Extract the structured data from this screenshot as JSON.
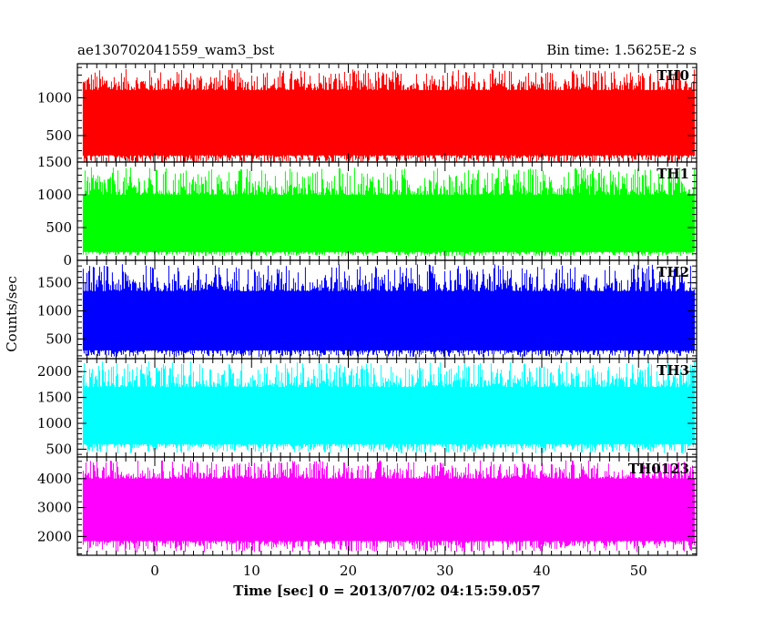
{
  "header": {
    "left_title": "ae130702041559_wam3_bst",
    "right_title": "Bin time: 1.5625E-2 s"
  },
  "chart_data": {
    "type": "line",
    "title": "ae130702041559_wam3_bst",
    "subtitle": "Bin time: 1.5625E-2 s",
    "xlabel": "Time [sec] 0 = 2013/07/02 04:15:59.057",
    "ylabel": "Counts/sec",
    "xlim": [
      -8,
      56
    ],
    "x_ticks": [
      0,
      10,
      20,
      30,
      40,
      50
    ],
    "x_data_range": [
      -7.4,
      55.8
    ],
    "panels": [
      {
        "name": "TH0",
        "color": "#ff0000",
        "ylim": [
          150,
          1450
        ],
        "y_ticks": [
          500,
          1000
        ],
        "band_low": 240,
        "band_high": 1100,
        "spike_min": 120,
        "spike_max": 1380
      },
      {
        "name": "TH1",
        "color": "#00ff00",
        "ylim": [
          0,
          1500
        ],
        "y_ticks": [
          0,
          500,
          1000,
          1500
        ],
        "band_low": 130,
        "band_high": 1000,
        "spike_min": 60,
        "spike_max": 1420
      },
      {
        "name": "TH2",
        "color": "#0000ff",
        "ylim": [
          150,
          1900
        ],
        "y_ticks": [
          500,
          1000,
          1500
        ],
        "band_low": 300,
        "band_high": 1350,
        "spike_min": 180,
        "spike_max": 1830
      },
      {
        "name": "TH3",
        "color": "#00ffff",
        "ylim": [
          350,
          2250
        ],
        "y_ticks": [
          500,
          1000,
          1500,
          2000
        ],
        "band_low": 600,
        "band_high": 1700,
        "spike_min": 420,
        "spike_max": 2200
      },
      {
        "name": "TH0123",
        "color": "#ff00ff",
        "ylim": [
          1350,
          4750
        ],
        "y_ticks": [
          2000,
          3000,
          4000
        ],
        "band_low": 1850,
        "band_high": 4000,
        "spike_min": 1450,
        "spike_max": 4650
      }
    ]
  }
}
